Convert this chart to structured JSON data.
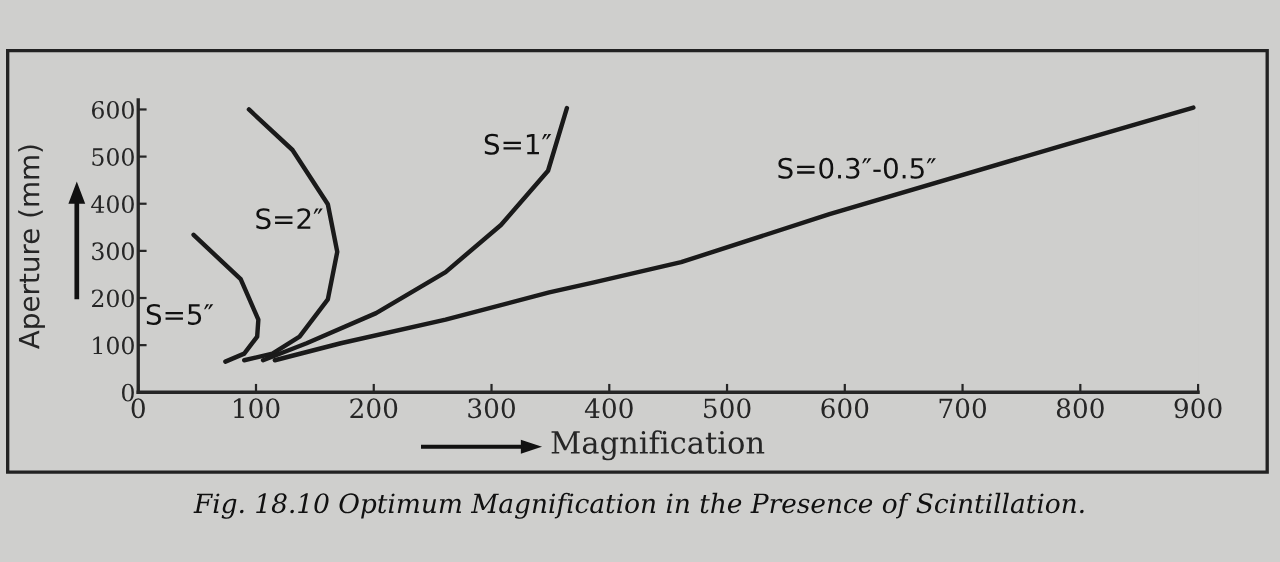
{
  "chart_data": {
    "type": "line",
    "xlabel": "Magnification",
    "ylabel": "Aperture (mm)",
    "xlim": [
      0,
      900
    ],
    "ylim": [
      0,
      620
    ],
    "xticks": [
      0,
      100,
      200,
      300,
      400,
      500,
      600,
      700,
      800,
      900
    ],
    "yticks": [
      0,
      100,
      200,
      300,
      400,
      500,
      600
    ],
    "grid": false,
    "legend": false,
    "marker": "none",
    "line_style": "solid",
    "annotations": [
      "Fig. 18.10 Optimum Magnification in the Presence of Scintillation."
    ],
    "series": [
      {
        "name": "S=5″",
        "color": "#1a1a1a",
        "x": [
          47,
          87,
          102,
          101,
          90,
          74
        ],
        "values": [
          334,
          240,
          154,
          118,
          82,
          65
        ]
      },
      {
        "name": "S=2″",
        "color": "#1a1a1a",
        "x": [
          94,
          131,
          161,
          169,
          161,
          137,
          114,
          90
        ],
        "values": [
          600,
          514,
          399,
          298,
          197,
          118,
          82,
          68
        ]
      },
      {
        "name": "S=1″",
        "color": "#1a1a1a",
        "x": [
          106,
          143,
          202,
          261,
          308,
          348,
          364
        ],
        "values": [
          68,
          104,
          168,
          255,
          355,
          470,
          603
        ]
      },
      {
        "name": "S=0.3″-0.5″",
        "color": "#1a1a1a",
        "x": [
          116,
          172,
          261,
          349,
          387,
          461,
          587,
          787,
          896
        ],
        "values": [
          68,
          104,
          154,
          212,
          233,
          276,
          378,
          525,
          604
        ]
      }
    ]
  }
}
